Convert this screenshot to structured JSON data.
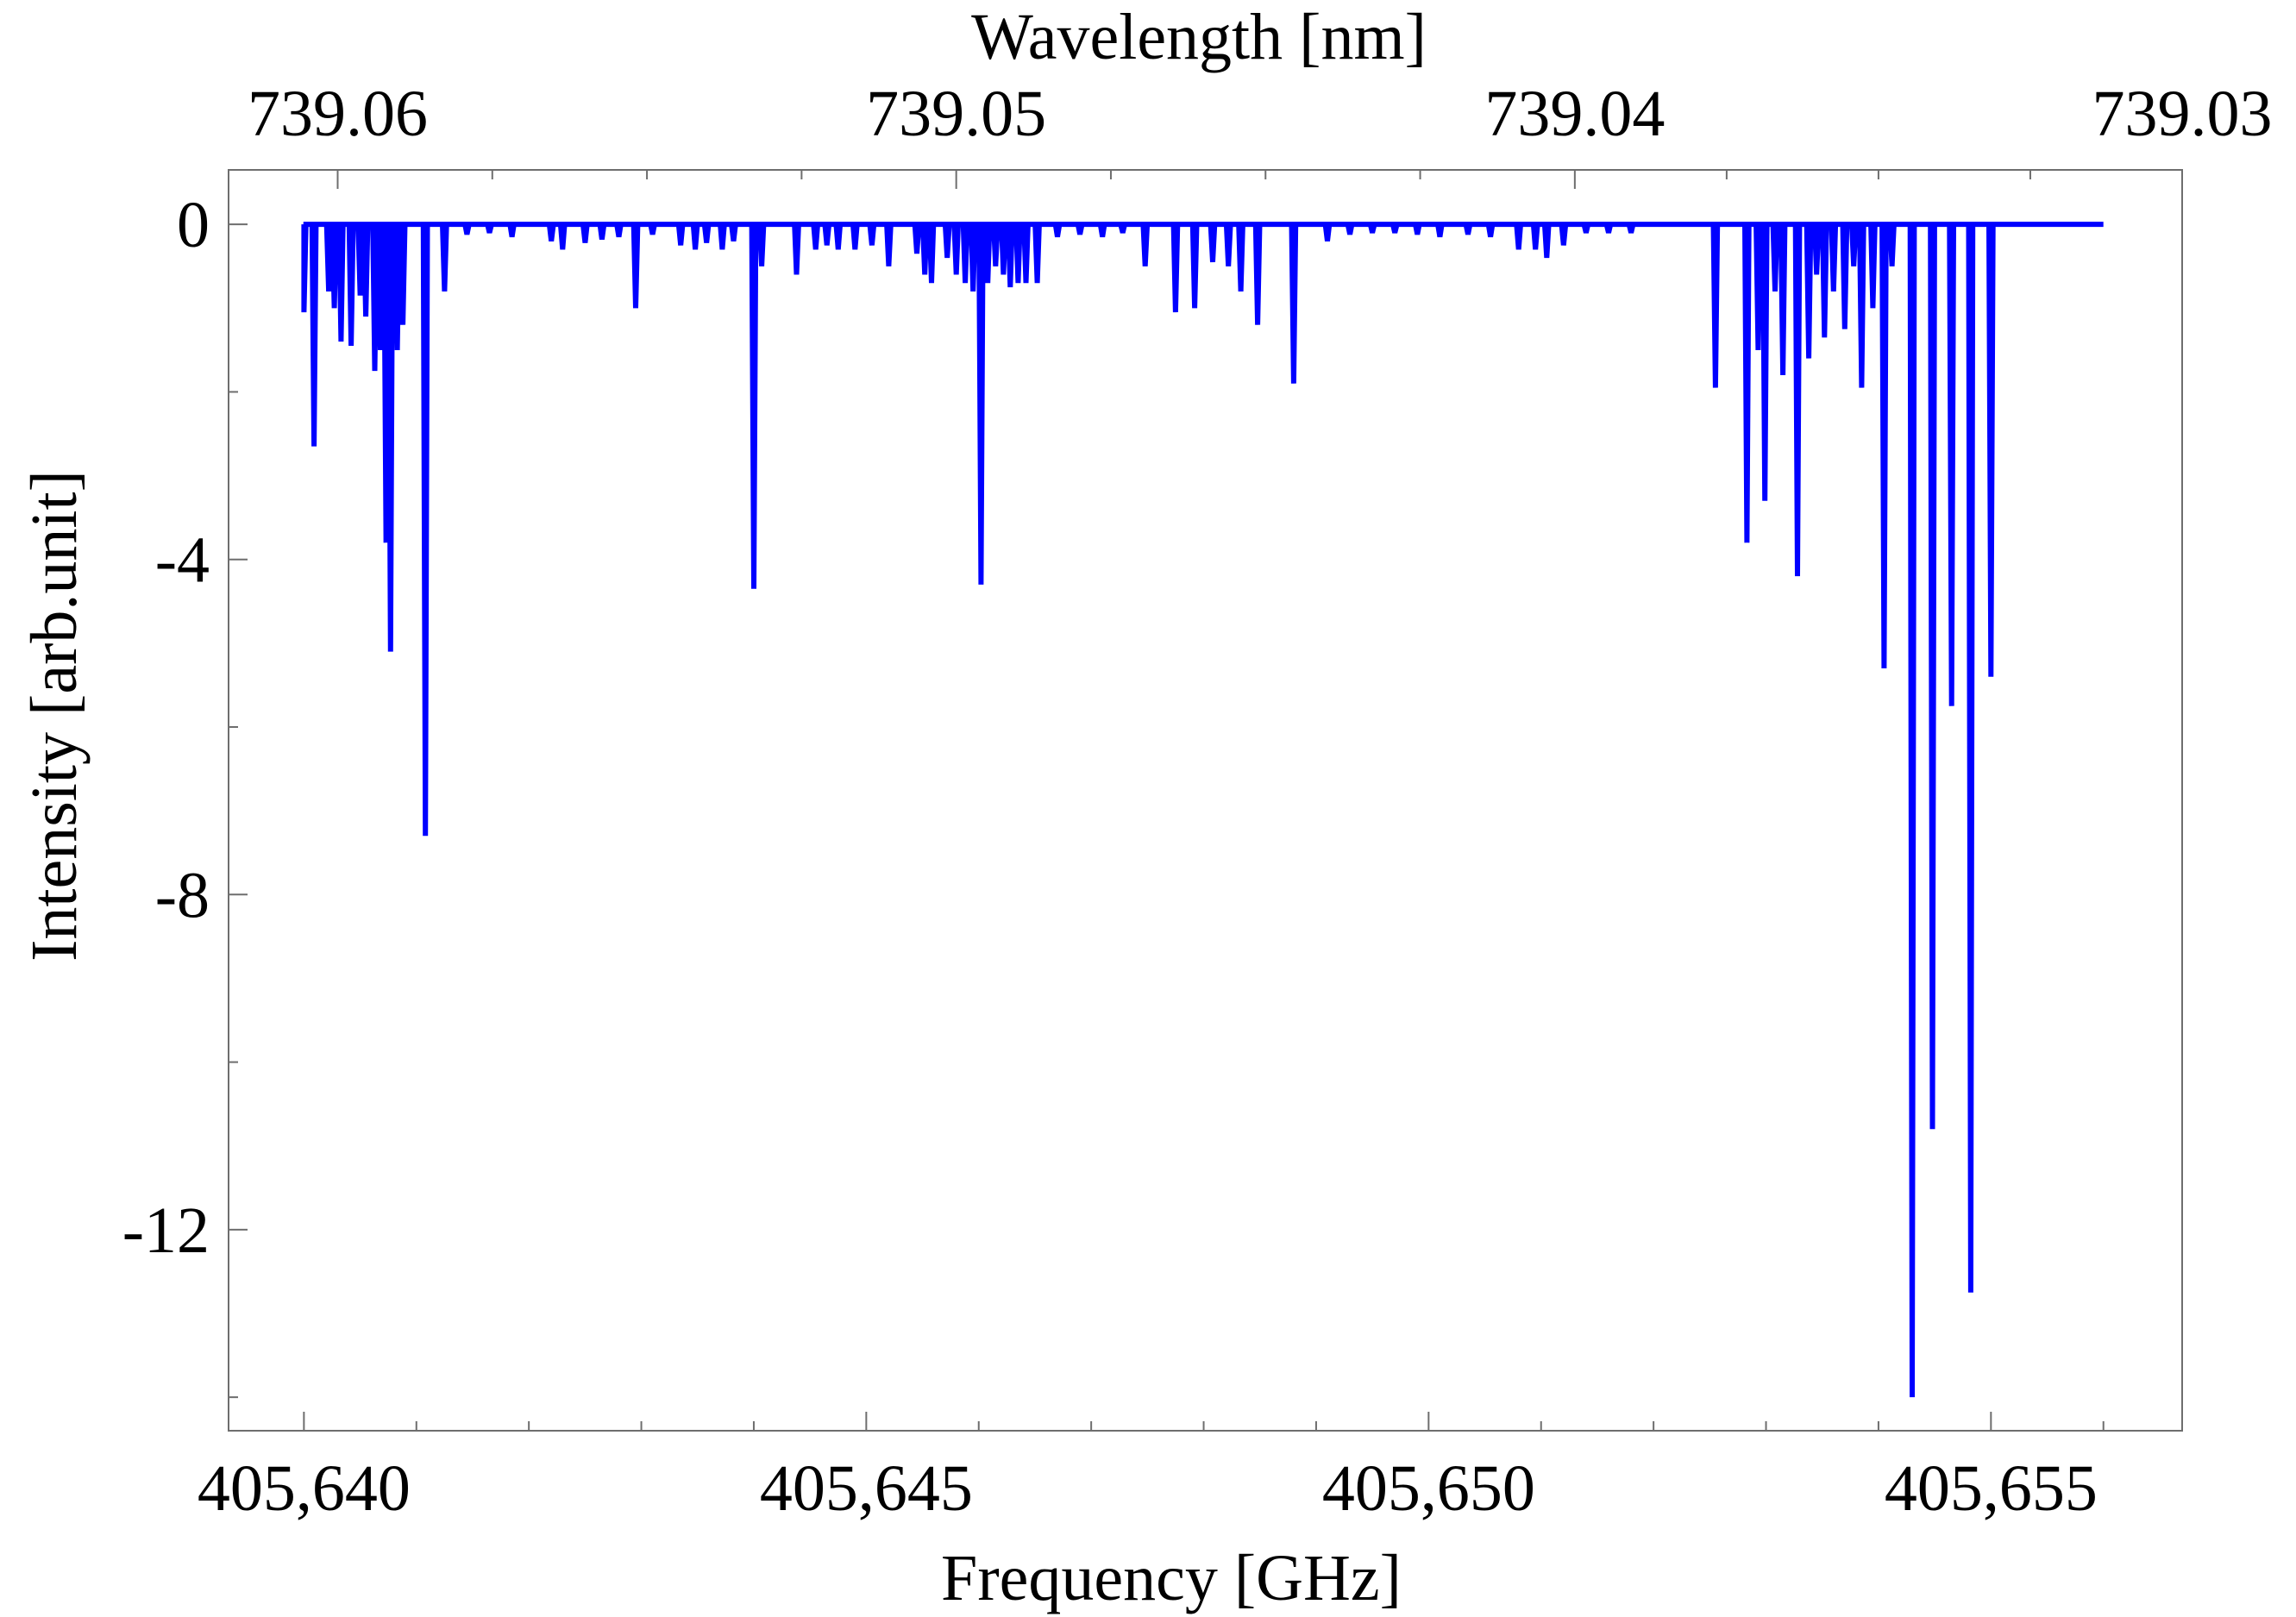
{
  "chart_data": {
    "type": "line",
    "xlabel": "Frequency [GHz]",
    "ylabel": "Intensity [arb.unit]",
    "x2label": "Wavelength [nm]",
    "xlim": [
      405639.33,
      405656.7
    ],
    "ylim": [
      -14.4,
      0.65
    ],
    "x_ticks": [
      {
        "value": 405640,
        "label": "405,640"
      },
      {
        "value": 405645,
        "label": "405,645"
      },
      {
        "value": 405650,
        "label": "405,650"
      },
      {
        "value": 405655,
        "label": "405,655"
      }
    ],
    "x2_ticks": [
      {
        "freq": 405640.3,
        "label": "739.06"
      },
      {
        "freq": 405645.8,
        "label": "739.05"
      },
      {
        "freq": 405651.3,
        "label": "739.04"
      },
      {
        "freq": 405656.7,
        "label": "739.03"
      }
    ],
    "y_ticks": [
      {
        "value": 0,
        "label": "0"
      },
      {
        "value": -4,
        "label": "-4"
      },
      {
        "value": -8,
        "label": "-8"
      },
      {
        "value": -12,
        "label": "-12"
      }
    ],
    "baseline": 0,
    "x_range": [
      405640.0,
      405656.0
    ],
    "color": "#0000ff",
    "dips": [
      [
        405640.0,
        -1.05
      ],
      [
        405640.09,
        -2.65
      ],
      [
        405640.22,
        -0.8
      ],
      [
        405640.27,
        -1.0
      ],
      [
        405640.33,
        -1.4
      ],
      [
        405640.42,
        -1.45
      ],
      [
        405640.5,
        -0.85
      ],
      [
        405640.55,
        -1.1
      ],
      [
        405640.63,
        -1.75
      ],
      [
        405640.68,
        -1.5
      ],
      [
        405640.73,
        -3.8
      ],
      [
        405640.77,
        -5.1
      ],
      [
        405640.83,
        -1.5
      ],
      [
        405640.88,
        -1.2
      ],
      [
        405641.08,
        -7.3
      ],
      [
        405641.25,
        -0.8
      ],
      [
        405641.45,
        -0.12
      ],
      [
        405641.65,
        -0.1
      ],
      [
        405641.85,
        -0.15
      ],
      [
        405642.2,
        -0.2
      ],
      [
        405642.3,
        -0.3
      ],
      [
        405642.5,
        -0.22
      ],
      [
        405642.65,
        -0.18
      ],
      [
        405642.8,
        -0.15
      ],
      [
        405642.95,
        -1.0
      ],
      [
        405643.1,
        -0.12
      ],
      [
        405643.35,
        -0.25
      ],
      [
        405643.48,
        -0.3
      ],
      [
        405643.58,
        -0.22
      ],
      [
        405643.72,
        -0.3
      ],
      [
        405643.82,
        -0.2
      ],
      [
        405644.0,
        -4.35
      ],
      [
        405644.07,
        -0.5
      ],
      [
        405644.38,
        -0.6
      ],
      [
        405644.55,
        -0.3
      ],
      [
        405644.65,
        -0.25
      ],
      [
        405644.75,
        -0.3
      ],
      [
        405644.9,
        -0.3
      ],
      [
        405645.05,
        -0.25
      ],
      [
        405645.2,
        -0.5
      ],
      [
        405645.45,
        -0.35
      ],
      [
        405645.52,
        -0.6
      ],
      [
        405645.58,
        -0.7
      ],
      [
        405645.72,
        -0.4
      ],
      [
        405645.8,
        -0.6
      ],
      [
        405645.88,
        -0.7
      ],
      [
        405645.95,
        -0.8
      ],
      [
        405646.02,
        -4.3
      ],
      [
        405646.08,
        -0.7
      ],
      [
        405646.15,
        -0.5
      ],
      [
        405646.22,
        -0.6
      ],
      [
        405646.28,
        -0.75
      ],
      [
        405646.35,
        -0.7
      ],
      [
        405646.42,
        -0.7
      ],
      [
        405646.52,
        -0.7
      ],
      [
        405646.7,
        -0.15
      ],
      [
        405646.9,
        -0.12
      ],
      [
        405647.1,
        -0.15
      ],
      [
        405647.28,
        -0.1
      ],
      [
        405647.48,
        -0.5
      ],
      [
        405647.75,
        -1.05
      ],
      [
        405647.92,
        -1.0
      ],
      [
        405648.08,
        -0.45
      ],
      [
        405648.22,
        -0.5
      ],
      [
        405648.33,
        -0.8
      ],
      [
        405648.48,
        -1.2
      ],
      [
        405648.8,
        -1.9
      ],
      [
        405649.1,
        -0.2
      ],
      [
        405649.3,
        -0.12
      ],
      [
        405649.5,
        -0.1
      ],
      [
        405649.7,
        -0.1
      ],
      [
        405649.9,
        -0.12
      ],
      [
        405650.1,
        -0.15
      ],
      [
        405650.35,
        -0.12
      ],
      [
        405650.55,
        -0.15
      ],
      [
        405650.8,
        -0.3
      ],
      [
        405650.95,
        -0.3
      ],
      [
        405651.05,
        -0.4
      ],
      [
        405651.2,
        -0.25
      ],
      [
        405651.4,
        -0.1
      ],
      [
        405651.6,
        -0.1
      ],
      [
        405651.8,
        -0.1
      ],
      [
        405652.55,
        -1.95
      ],
      [
        405652.83,
        -3.8
      ],
      [
        405652.93,
        -1.5
      ],
      [
        405652.99,
        -3.3
      ],
      [
        405653.08,
        -0.8
      ],
      [
        405653.15,
        -1.8
      ],
      [
        405653.28,
        -4.2
      ],
      [
        405653.38,
        -1.6
      ],
      [
        405653.45,
        -0.6
      ],
      [
        405653.52,
        -1.35
      ],
      [
        405653.6,
        -0.8
      ],
      [
        405653.7,
        -1.25
      ],
      [
        405653.78,
        -0.5
      ],
      [
        405653.85,
        -1.95
      ],
      [
        405653.95,
        -1.0
      ],
      [
        405654.05,
        -5.3
      ],
      [
        405654.12,
        -0.5
      ],
      [
        405654.3,
        -14.0
      ],
      [
        405654.48,
        -10.8
      ],
      [
        405654.65,
        -5.75
      ],
      [
        405654.82,
        -12.75
      ],
      [
        405655.0,
        -5.4
      ]
    ]
  }
}
